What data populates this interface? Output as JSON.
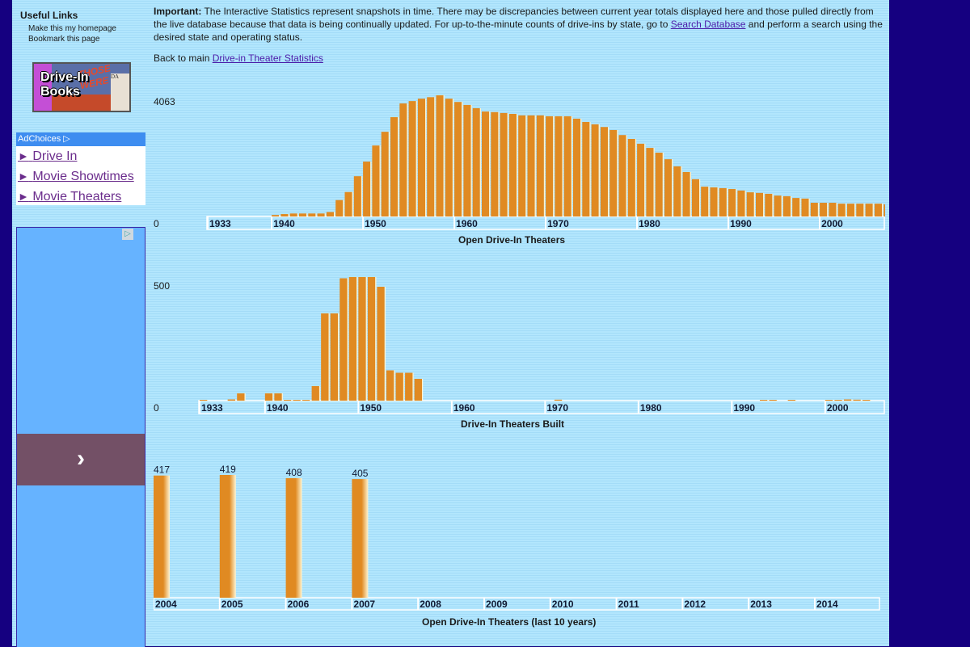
{
  "sidebar": {
    "useful_links_title": "Useful Links",
    "links": [
      "Make this my homepage",
      "Bookmark this page"
    ],
    "books_banner": {
      "line1": "Drive-In",
      "line2": "Books",
      "poster_overlay": "THOSE WERE TH",
      "poster_text": "DA"
    },
    "adchoices": {
      "header": "AdChoices",
      "links": [
        "Drive In",
        "Movie Showtimes",
        "Movie Theaters"
      ],
      "bullet": "►"
    },
    "ad_panel": {
      "next_icon": "chevron-right-icon",
      "next_glyph": "›"
    }
  },
  "main": {
    "notice": {
      "label": "Important:",
      "text_before_link": " The Interactive Statistics represent snapshots in time. There may be discrepancies between current year totals displayed here and those pulled directly from the live database because that data is being continually updated. For up-to-the-minute counts of drive-ins by state, go to ",
      "link": "Search Database",
      "text_after_link": " and perform a search using the desired state and operating status."
    },
    "back_prefix": "Back to main ",
    "back_link": "Drive-in Theater Statistics"
  },
  "colors": {
    "bar": "#e08a22",
    "bar_highlight": "#fff4d0",
    "axis_box": "#ffffff",
    "page_border": "#150080"
  },
  "chart_data": [
    {
      "type": "bar",
      "title": "Open Drive-In Theaters",
      "xlabel": "",
      "ylabel": "",
      "y_tick_labels": [
        "0",
        "4063"
      ],
      "ylim": [
        0,
        4063
      ],
      "x_tick_labels": [
        "1933",
        "1940",
        "1950",
        "1960",
        "1970",
        "1980",
        "1990",
        "2000"
      ],
      "xlim": [
        1933,
        2009
      ],
      "x": [
        1940,
        1941,
        1942,
        1943,
        1944,
        1945,
        1946,
        1947,
        1948,
        1949,
        1950,
        1951,
        1952,
        1953,
        1954,
        1955,
        1956,
        1957,
        1958,
        1959,
        1960,
        1961,
        1962,
        1963,
        1964,
        1965,
        1966,
        1967,
        1968,
        1969,
        1970,
        1971,
        1972,
        1973,
        1974,
        1975,
        1976,
        1977,
        1978,
        1979,
        1980,
        1981,
        1982,
        1983,
        1984,
        1985,
        1986,
        1987,
        1988,
        1989,
        1990,
        1991,
        1992,
        1993,
        1994,
        1995,
        1996,
        1997,
        1998,
        1999,
        2000,
        2001,
        2002,
        2003,
        2004,
        2005,
        2006,
        2007
      ],
      "values": [
        50,
        80,
        100,
        100,
        100,
        100,
        150,
        550,
        820,
        1350,
        1840,
        2380,
        2840,
        3330,
        3790,
        3870,
        3950,
        4000,
        4063,
        3950,
        3840,
        3740,
        3630,
        3520,
        3500,
        3470,
        3440,
        3390,
        3390,
        3390,
        3360,
        3360,
        3360,
        3280,
        3170,
        3090,
        3000,
        2900,
        2730,
        2600,
        2440,
        2300,
        2140,
        1920,
        1680,
        1490,
        1250,
        1000,
        975,
        950,
        920,
        870,
        810,
        790,
        760,
        700,
        680,
        620,
        600,
        460,
        460,
        460,
        430,
        430,
        430,
        430,
        430,
        410
      ]
    },
    {
      "type": "bar",
      "title": "Drive-In Theaters Built",
      "xlabel": "",
      "ylabel": "",
      "y_tick_labels": [
        "0",
        "500"
      ],
      "ylim": [
        0,
        520
      ],
      "x_tick_labels": [
        "1933",
        "1940",
        "1950",
        "1960",
        "1970",
        "1980",
        "1990",
        "2000"
      ],
      "xlim": [
        1933,
        2007
      ],
      "x": [
        1933,
        1936,
        1937,
        1940,
        1941,
        1942,
        1943,
        1944,
        1945,
        1946,
        1947,
        1948,
        1949,
        1950,
        1951,
        1952,
        1953,
        1954,
        1955,
        1956,
        1971,
        1993,
        1994,
        1996,
        2000,
        2001,
        2002,
        2003,
        2004
      ],
      "values": [
        3,
        5,
        30,
        30,
        30,
        3,
        3,
        3,
        60,
        360,
        360,
        505,
        510,
        510,
        510,
        470,
        125,
        115,
        115,
        90,
        4,
        2,
        2,
        3,
        2,
        3,
        5,
        4,
        3
      ]
    },
    {
      "type": "bar",
      "title": "Open Drive-In Theaters (last 10 years)",
      "xlabel": "",
      "ylabel": "",
      "ylim": [
        0,
        419
      ],
      "x_tick_labels": [
        "2004",
        "2005",
        "2006",
        "2007",
        "2008",
        "2009",
        "2010",
        "2011",
        "2012",
        "2013",
        "2014"
      ],
      "categories": [
        "2004",
        "2005",
        "2006",
        "2007"
      ],
      "values": [
        417,
        419,
        408,
        405
      ],
      "data_labels": [
        "417",
        "419",
        "408",
        "405"
      ]
    }
  ]
}
